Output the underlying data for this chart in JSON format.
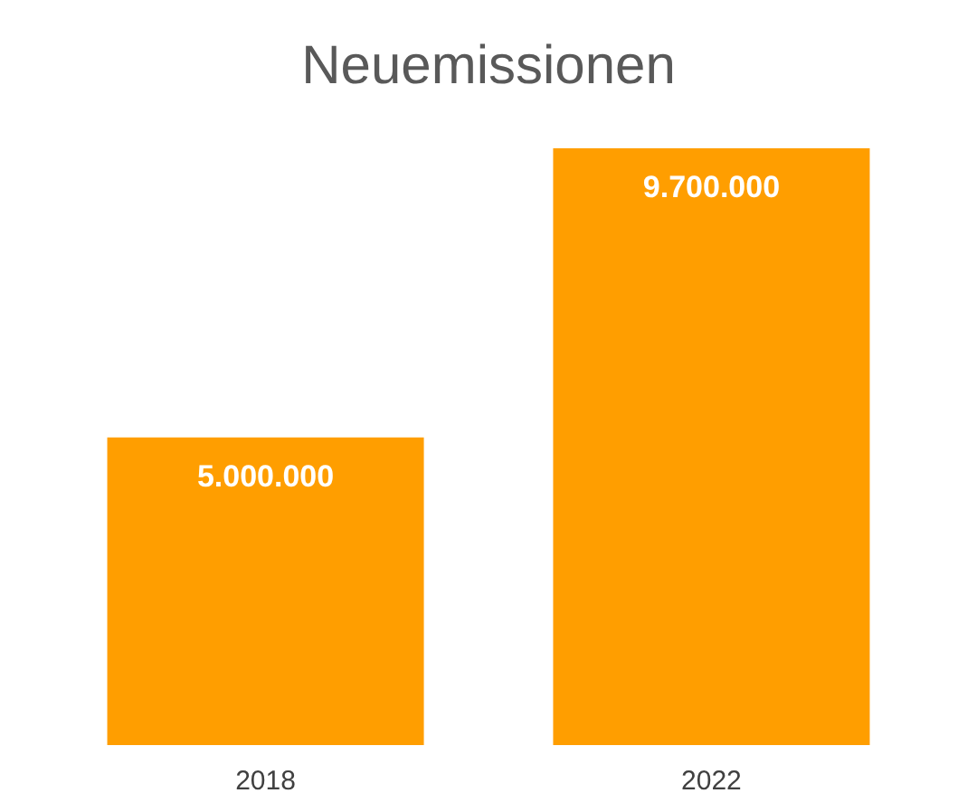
{
  "chart_data": {
    "type": "bar",
    "title": "Neuemissionen",
    "categories": [
      "2018",
      "2022"
    ],
    "values": [
      5000000,
      9700000
    ],
    "value_labels": [
      "5.000.000",
      "9.700.000"
    ],
    "color": "#ff9e00"
  }
}
